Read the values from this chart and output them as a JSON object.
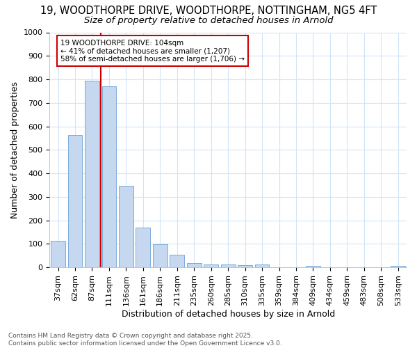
{
  "title1": "19, WOODTHORPE DRIVE, WOODTHORPE, NOTTINGHAM, NG5 4FT",
  "title2": "Size of property relative to detached houses in Arnold",
  "xlabel": "Distribution of detached houses by size in Arnold",
  "ylabel": "Number of detached properties",
  "categories": [
    "37sqm",
    "62sqm",
    "87sqm",
    "111sqm",
    "136sqm",
    "161sqm",
    "186sqm",
    "211sqm",
    "235sqm",
    "260sqm",
    "285sqm",
    "310sqm",
    "335sqm",
    "359sqm",
    "384sqm",
    "409sqm",
    "434sqm",
    "459sqm",
    "483sqm",
    "508sqm",
    "533sqm"
  ],
  "values": [
    112,
    563,
    793,
    770,
    348,
    168,
    97,
    53,
    18,
    13,
    13,
    10,
    12,
    0,
    0,
    7,
    0,
    0,
    0,
    0,
    7
  ],
  "bar_color": "#c5d8f0",
  "bar_edge_color": "#7aabdc",
  "bg_color": "#ffffff",
  "grid_color": "#d0e4f7",
  "vline_color": "#cc0000",
  "vline_x": 2.5,
  "annotation_text": "19 WOODTHORPE DRIVE: 104sqm\n← 41% of detached houses are smaller (1,207)\n58% of semi-detached houses are larger (1,706) →",
  "annotation_box_edgecolor": "#cc0000",
  "ylim": [
    0,
    1000
  ],
  "yticks": [
    0,
    100,
    200,
    300,
    400,
    500,
    600,
    700,
    800,
    900,
    1000
  ],
  "footer1": "Contains HM Land Registry data © Crown copyright and database right 2025.",
  "footer2": "Contains public sector information licensed under the Open Government Licence v3.0.",
  "title1_fontsize": 10.5,
  "title2_fontsize": 9.5,
  "axis_label_fontsize": 9,
  "tick_fontsize": 8,
  "footer_fontsize": 6.5,
  "annotation_fontsize": 7.5
}
